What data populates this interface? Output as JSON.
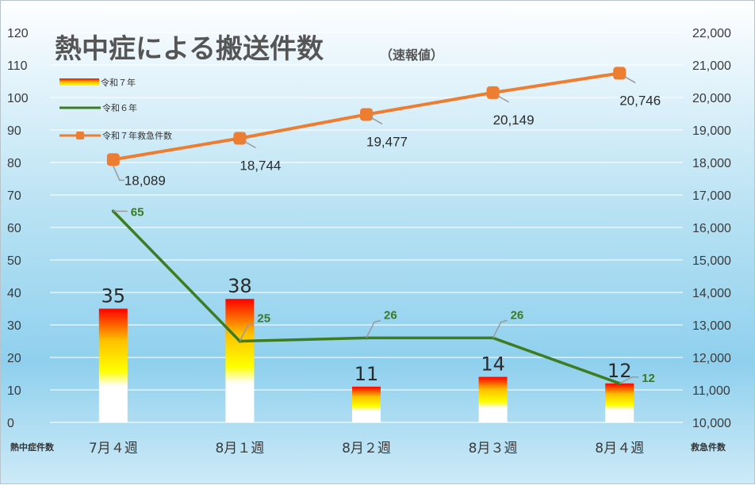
{
  "chart_data": {
    "type": "bar",
    "title": "熱中症による搬送件数",
    "subtitle": "（速報値）",
    "xlabel": "熱中症件数",
    "ylabel_right": "救急件数",
    "categories": [
      "7月４週",
      "8月１週",
      "8月２週",
      "8月３週",
      "8月４週"
    ],
    "y_left": {
      "min": 0,
      "max": 120,
      "step": 10,
      "ticks": [
        "0",
        "10",
        "20",
        "30",
        "40",
        "50",
        "60",
        "70",
        "80",
        "90",
        "100",
        "110",
        "120"
      ]
    },
    "y_right": {
      "min": 10000,
      "max": 22000,
      "step": 1000,
      "ticks": [
        "10,000",
        "11,000",
        "12,000",
        "13,000",
        "14,000",
        "15,000",
        "16,000",
        "17,000",
        "18,000",
        "19,000",
        "20,000",
        "21,000",
        "22,000"
      ]
    },
    "grid": true,
    "legend_position": "top-left",
    "series": [
      {
        "name": "令和７年",
        "type": "bar",
        "axis": "left",
        "values": [
          35,
          38,
          11,
          14,
          12
        ],
        "labels": [
          "35",
          "38",
          "11",
          "14",
          "12"
        ]
      },
      {
        "name": "令和６年",
        "type": "line",
        "axis": "left",
        "color": "#3d7c21",
        "values": [
          65,
          25,
          26,
          26,
          12
        ],
        "labels": [
          "65",
          "25",
          "26",
          "26",
          "12"
        ]
      },
      {
        "name": "令和７年救急件数",
        "type": "line",
        "axis": "right",
        "color": "#ed7d31",
        "values": [
          18089,
          18744,
          19477,
          20149,
          20746
        ],
        "labels": [
          "18,089",
          "18,744",
          "19,477",
          "20,149",
          "20,746"
        ]
      }
    ]
  }
}
